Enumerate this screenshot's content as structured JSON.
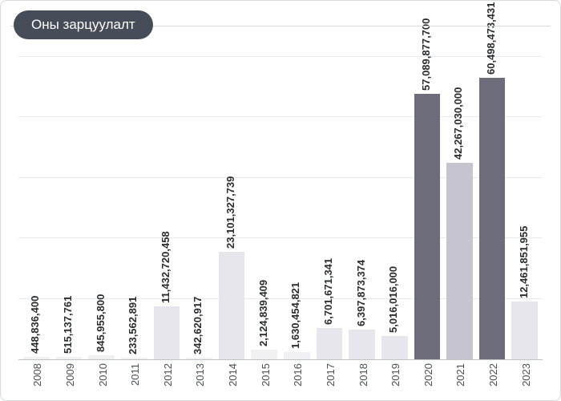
{
  "title": "Оны зарцуулалт",
  "chart": {
    "type": "bar",
    "background_color": "#ffffff",
    "border_color": "#d7d9dc",
    "grid_color": "#e7e9ec",
    "axis_color": "#bfc2c7",
    "title_pill_bg": "#474c59",
    "title_pill_fg": "#ffffff",
    "label_fontsize": 13,
    "label_color": "#2b2c2e",
    "tick_fontsize": 13,
    "tick_color": "#4c4e52",
    "bar_width": 1.0,
    "gridline_count": 5,
    "ylim": [
      0,
      65000000000
    ],
    "categories": [
      "2008",
      "2009",
      "2010",
      "2011",
      "2012",
      "2013",
      "2014",
      "2015",
      "2016",
      "2017",
      "2018",
      "2019",
      "2020",
      "2021",
      "2022",
      "2023"
    ],
    "values": [
      448836400,
      515137761,
      845955800,
      233562891,
      11432720458,
      342620917,
      23101327739,
      2124839409,
      1630454821,
      6701671341,
      6397873374,
      5016016000,
      57089877700,
      42267030000,
      60498473431,
      12461851955
    ],
    "value_labels": [
      "448,836,400",
      "515,137,761",
      "845,955,800",
      "233,562,891",
      "11,432,720,458",
      "342,620,917",
      "23,101,327,739",
      "2,124,839,409",
      "1,630,454,821",
      "6,701,671,341",
      "6,397,873,374",
      "5,016,016,000",
      "57,089,877,700",
      "42,267,030,000",
      "60,498,473,431",
      "12,461,851,955"
    ],
    "bar_colors": [
      "#f1f0f2",
      "#f1f0f2",
      "#f1f0f2",
      "#f1f0f2",
      "#e6e5eb",
      "#f1f0f2",
      "#e6e5eb",
      "#f1f0f2",
      "#f1f0f2",
      "#e7e6ec",
      "#e7e6ec",
      "#e7e6ec",
      "#6d6c7a",
      "#c6c4cf",
      "#6d6c7a",
      "#e6e5eb"
    ]
  }
}
